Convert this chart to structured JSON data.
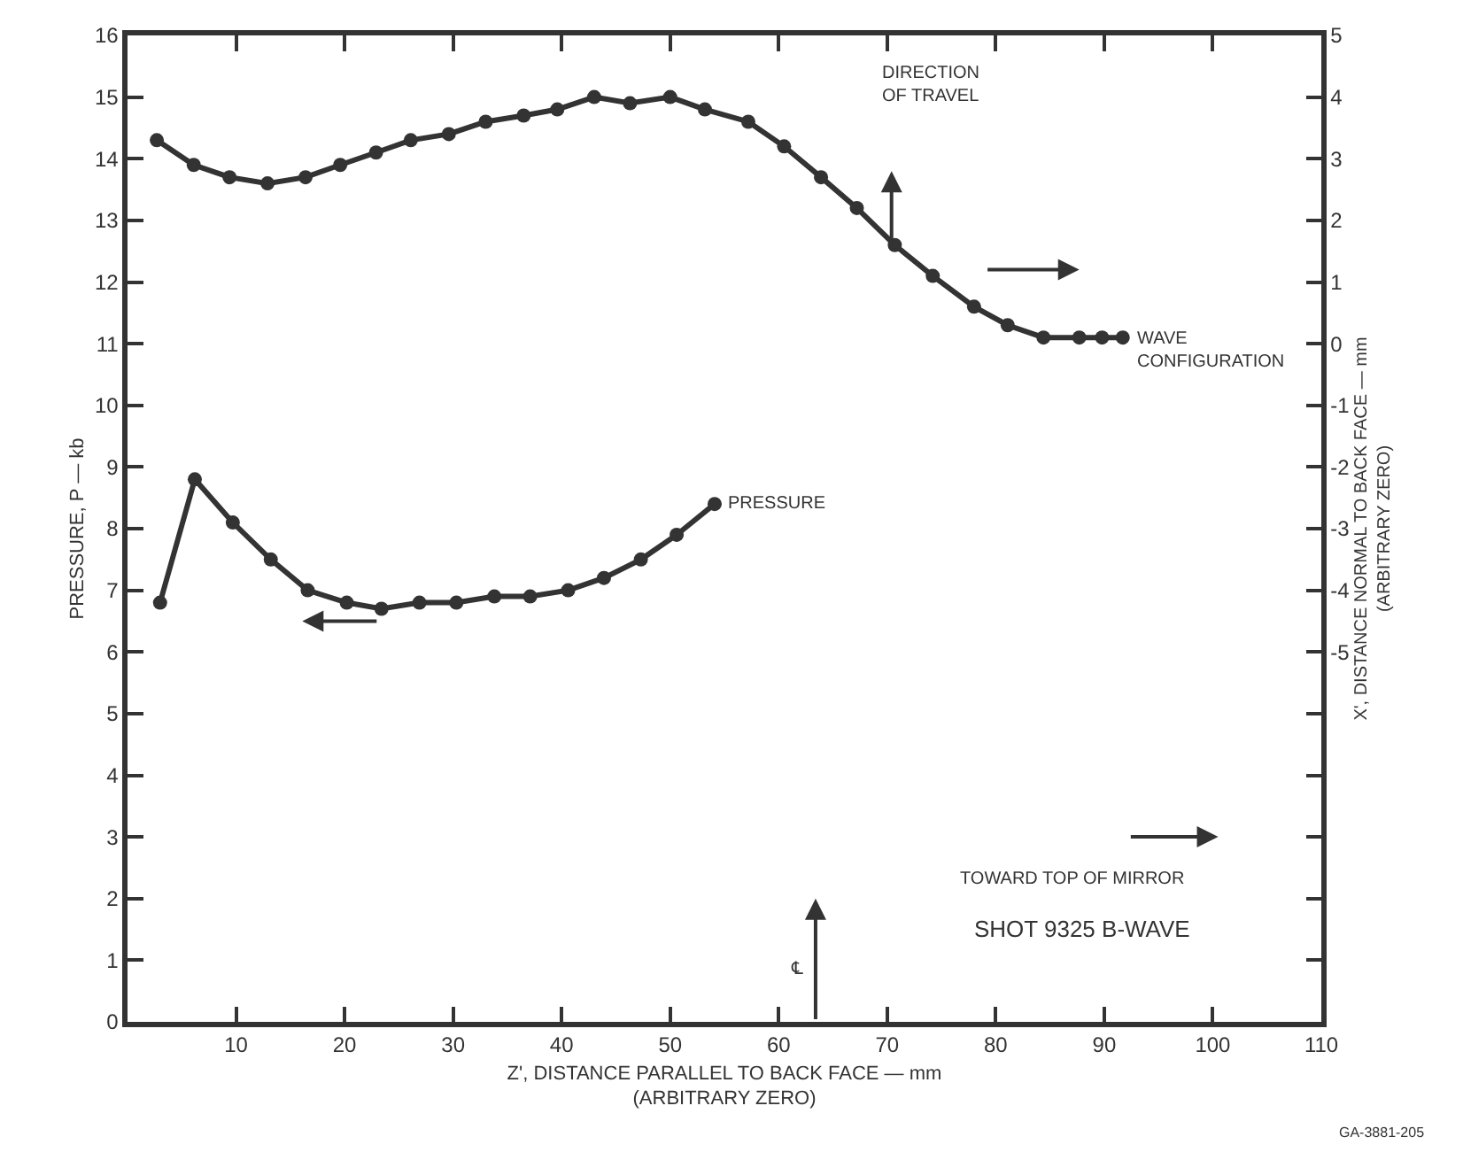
{
  "chart_data": {
    "type": "line",
    "xlabel": "Z', DISTANCE PARALLEL TO BACK FACE — mm\n(ARBITRARY ZERO)",
    "ylabel": "PRESSURE, P — kb",
    "y2label": "X', DISTANCE NORMAL TO BACK FACE — mm\n(ARBITRARY ZERO)",
    "xlim": [
      0,
      110
    ],
    "xticks": [
      10,
      20,
      30,
      40,
      50,
      60,
      70,
      80,
      90,
      100,
      110
    ],
    "ylim": [
      0,
      16
    ],
    "yticks": [
      0,
      1,
      2,
      3,
      4,
      5,
      6,
      7,
      8,
      9,
      10,
      11,
      12,
      13,
      14,
      15,
      16
    ],
    "y2lim": [
      -11,
      5
    ],
    "y2ticks": [
      {
        "value": -10,
        "label": null
      },
      {
        "value": -9,
        "label": null
      },
      {
        "value": -8,
        "label": null
      },
      {
        "value": -7,
        "label": null
      },
      {
        "value": -6,
        "label": null
      },
      -5,
      -4,
      -3,
      -2,
      -1,
      0,
      1,
      2,
      3,
      4,
      5
    ],
    "marker": "circle",
    "line_style": "solid",
    "legend": false,
    "series": [
      {
        "name": "WAVE CONFIGURATION",
        "color": "#333333",
        "axis": "y2",
        "x": [
          2.7,
          6.1,
          9.4,
          12.9,
          16.4,
          19.6,
          22.9,
          26.1,
          29.6,
          33.0,
          36.5,
          39.6,
          43.0,
          46.3,
          50.0,
          53.2,
          57.2,
          60.5,
          63.9,
          67.2,
          70.7,
          74.2,
          78.0,
          81.1,
          84.4,
          87.7,
          89.8,
          91.7
        ],
        "values": [
          3.3,
          2.9,
          2.7,
          2.6,
          2.7,
          2.9,
          3.1,
          3.3,
          3.4,
          3.6,
          3.7,
          3.8,
          4.0,
          3.9,
          4.0,
          3.8,
          3.6,
          3.2,
          2.7,
          2.2,
          1.6,
          1.1,
          0.6,
          0.3,
          0.1,
          0.1,
          0.1,
          0.1
        ]
      },
      {
        "name": "PRESSURE",
        "color": "#333333",
        "x": [
          3.0,
          6.2,
          9.7,
          13.2,
          16.6,
          20.2,
          23.4,
          26.9,
          30.3,
          33.8,
          37.1,
          40.6,
          43.9,
          47.3,
          50.6,
          54.1
        ],
        "values": [
          6.8,
          8.8,
          8.1,
          7.5,
          7.0,
          6.8,
          6.7,
          6.8,
          6.8,
          6.9,
          6.9,
          7.0,
          7.2,
          7.5,
          7.9,
          8.4
        ]
      }
    ],
    "annotations": [
      "DIRECTION\nOF TRAVEL",
      "TOWARD TOP OF MIRROR",
      "SHOT 9325 B-WAVE",
      "℄",
      "GA-3881-205"
    ]
  }
}
